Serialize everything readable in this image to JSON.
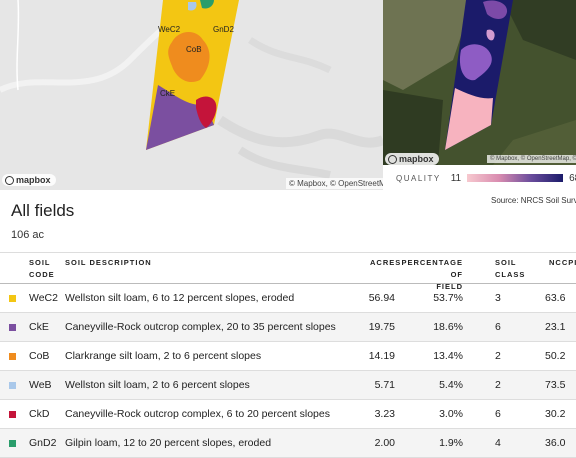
{
  "map_left": {
    "labels": [
      "WeC2",
      "GnD2",
      "CoB",
      "CkE"
    ],
    "logo": "mapbox",
    "attribution": "© Mapbox, © OpenStreetMap"
  },
  "map_right": {
    "logo": "mapbox",
    "attribution": "© Mapbox, © OpenStreetMap, © Ma"
  },
  "quality": {
    "label": "QUALITY",
    "min": "11",
    "max": "68"
  },
  "title": "All fields",
  "total_acres": "106 ac",
  "source": "Source: NRCS Soil Survey",
  "table": {
    "headers": {
      "soil_code": [
        "SOIL",
        "CODE"
      ],
      "description": "SOIL DESCRIPTION",
      "acres": "ACRES",
      "pct": [
        "PERCENTAGE OF",
        "FIELD"
      ],
      "soil_class": [
        "SOIL",
        "CLASS"
      ],
      "nccpi": "NCCPI"
    },
    "rows": [
      {
        "code": "WeC2",
        "color": "#f3c613",
        "desc": "Wellston silt loam, 6 to 12 percent slopes, eroded",
        "acres": "56.94",
        "pct": "53.7%",
        "cls": "3",
        "nccpi": "63.6"
      },
      {
        "code": "CkE",
        "color": "#7b4fa0",
        "desc": "Caneyville-Rock outcrop complex, 20 to 35 percent slopes",
        "acres": "19.75",
        "pct": "18.6%",
        "cls": "6",
        "nccpi": "23.1"
      },
      {
        "code": "CoB",
        "color": "#ef8c1e",
        "desc": "Clarkrange silt loam, 2 to 6 percent slopes",
        "acres": "14.19",
        "pct": "13.4%",
        "cls": "2",
        "nccpi": "50.2"
      },
      {
        "code": "WeB",
        "color": "#a9c8ea",
        "desc": "Wellston silt loam, 2 to 6 percent slopes",
        "acres": "5.71",
        "pct": "5.4%",
        "cls": "2",
        "nccpi": "73.5"
      },
      {
        "code": "CkD",
        "color": "#c4143a",
        "desc": "Caneyville-Rock outcrop complex, 6 to 20 percent slopes",
        "acres": "3.23",
        "pct": "3.0%",
        "cls": "6",
        "nccpi": "30.2"
      },
      {
        "code": "GnD2",
        "color": "#2a9d6b",
        "desc": "Gilpin loam, 12 to 20 percent slopes, eroded",
        "acres": "2.00",
        "pct": "1.9%",
        "cls": "4",
        "nccpi": "36.0"
      }
    ]
  }
}
